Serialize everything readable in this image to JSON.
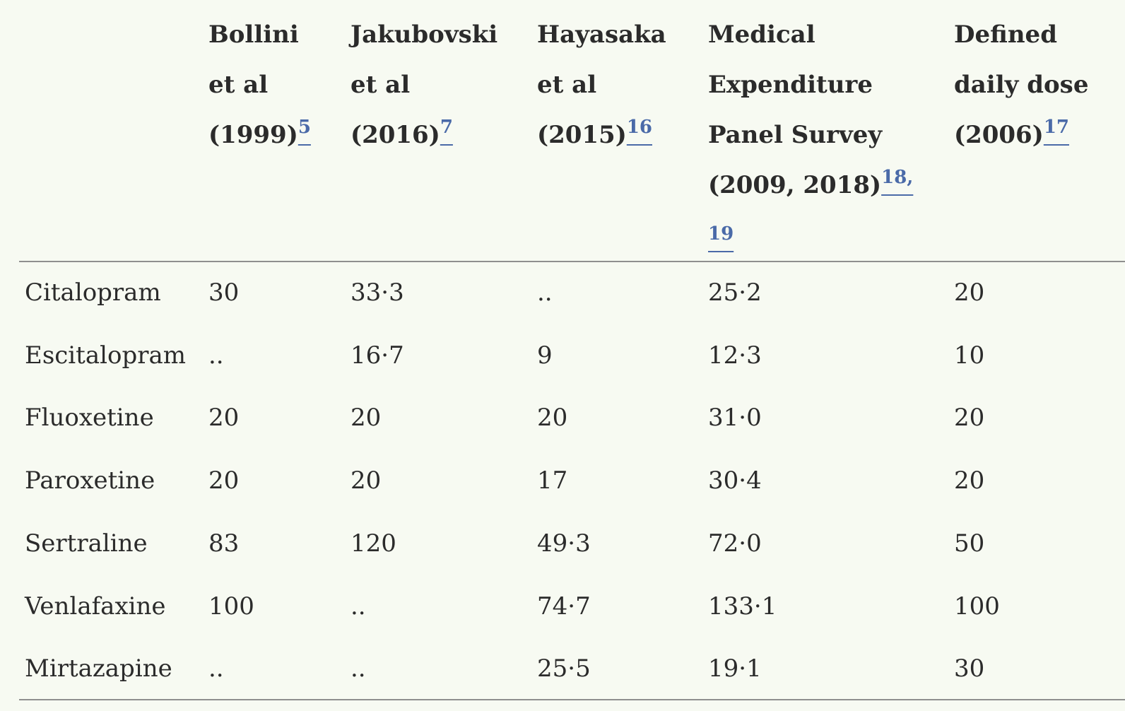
{
  "table": {
    "columns": [
      {
        "lines": [
          "Bollini",
          "et al",
          "(1999)"
        ],
        "refs": [
          "5"
        ]
      },
      {
        "lines": [
          "Jakubovski",
          "et al",
          "(2016)"
        ],
        "refs": [
          "7"
        ]
      },
      {
        "lines": [
          "Hayasaka",
          "et al",
          "(2015)"
        ],
        "refs": [
          "16"
        ]
      },
      {
        "lines": [
          "Medical",
          "Expenditure",
          "Panel Survey",
          "(2009, 2018)"
        ],
        "refs": [
          "18,",
          "19"
        ]
      },
      {
        "lines": [
          "Defined",
          "daily dose",
          "(2006)"
        ],
        "refs": [
          "17"
        ]
      }
    ],
    "rows": [
      [
        "Citalopram",
        "30",
        "33·3",
        "..",
        "25·2",
        "20"
      ],
      [
        "Escitalopram",
        "..",
        "16·7",
        "9",
        "12·3",
        "10"
      ],
      [
        "Fluoxetine",
        "20",
        "20",
        "20",
        "31·0",
        "20"
      ],
      [
        "Paroxetine",
        "20",
        "20",
        "17",
        "30·4",
        "20"
      ],
      [
        "Sertraline",
        "83",
        "120",
        "49·3",
        "72·0",
        "50"
      ],
      [
        "Venlafaxine",
        "100",
        "..",
        "74·7",
        "133·1",
        "100"
      ],
      [
        "Mirtazapine",
        "..",
        "..",
        "25·5",
        "19·1",
        "30"
      ]
    ]
  }
}
